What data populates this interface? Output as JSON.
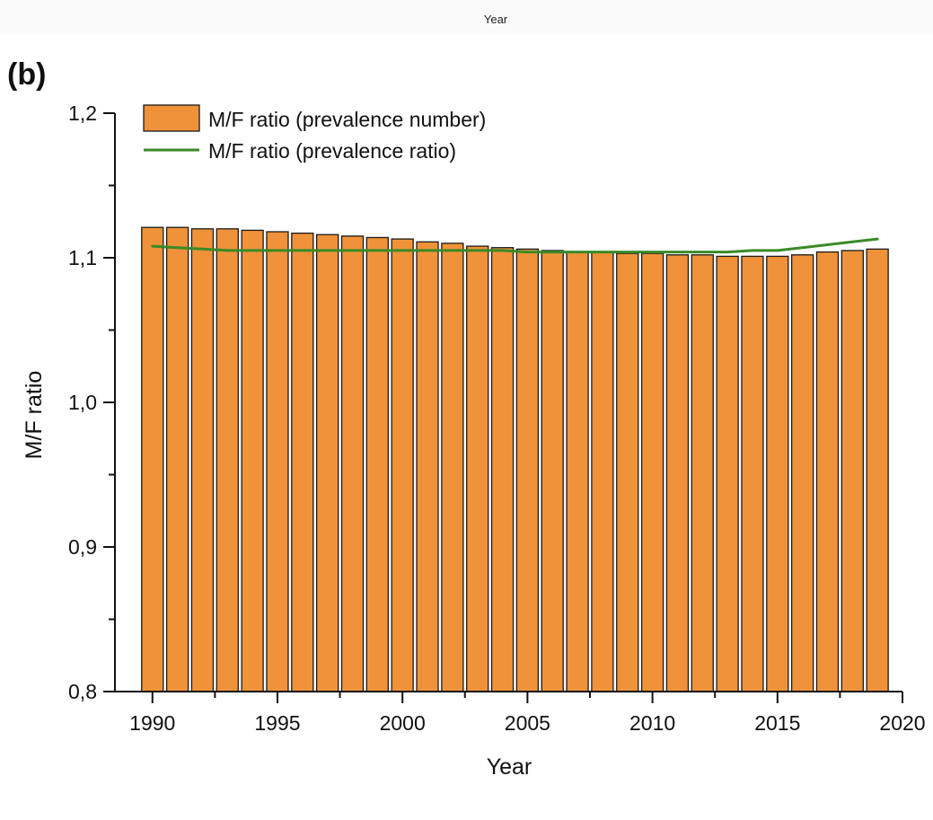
{
  "top_axis_label": "Year",
  "panel_label": "(b)",
  "chart_data": {
    "type": "bar",
    "title": "",
    "xlabel": "Year",
    "ylabel": "M/F ratio",
    "x_ticks": [
      "1990",
      "1995",
      "2000",
      "2005",
      "2010",
      "2015",
      "2020"
    ],
    "x_tick_values": [
      1990,
      1995,
      2000,
      2005,
      2010,
      2015,
      2020
    ],
    "y_ticks": [
      "0,8",
      "0,9",
      "1,0",
      "1,1",
      "1,2"
    ],
    "y_tick_values": [
      0.8,
      0.9,
      1.0,
      1.1,
      1.2
    ],
    "xlim": [
      1988.5,
      2020
    ],
    "ylim": [
      0.8,
      1.2
    ],
    "legend_position": "top-left",
    "x": [
      1990,
      1991,
      1992,
      1993,
      1994,
      1995,
      1996,
      1997,
      1998,
      1999,
      2000,
      2001,
      2002,
      2003,
      2004,
      2005,
      2006,
      2007,
      2008,
      2009,
      2010,
      2011,
      2012,
      2013,
      2014,
      2015,
      2016,
      2017,
      2018,
      2019
    ],
    "series": [
      {
        "name": "M/F ratio (prevalence number)",
        "type": "bar",
        "color": "#F0923A",
        "values": [
          1.121,
          1.121,
          1.12,
          1.12,
          1.119,
          1.118,
          1.117,
          1.116,
          1.115,
          1.114,
          1.113,
          1.111,
          1.11,
          1.108,
          1.107,
          1.106,
          1.105,
          1.104,
          1.104,
          1.103,
          1.103,
          1.102,
          1.102,
          1.101,
          1.101,
          1.101,
          1.102,
          1.104,
          1.105,
          1.106
        ]
      },
      {
        "name": "M/F ratio (prevalence ratio)",
        "type": "line",
        "color": "#3A8A27",
        "values": [
          1.108,
          1.107,
          1.106,
          1.105,
          1.105,
          1.105,
          1.105,
          1.105,
          1.105,
          1.105,
          1.105,
          1.105,
          1.105,
          1.105,
          1.105,
          1.104,
          1.104,
          1.104,
          1.104,
          1.104,
          1.104,
          1.104,
          1.104,
          1.104,
          1.105,
          1.105,
          1.107,
          1.109,
          1.111,
          1.113
        ]
      }
    ]
  }
}
